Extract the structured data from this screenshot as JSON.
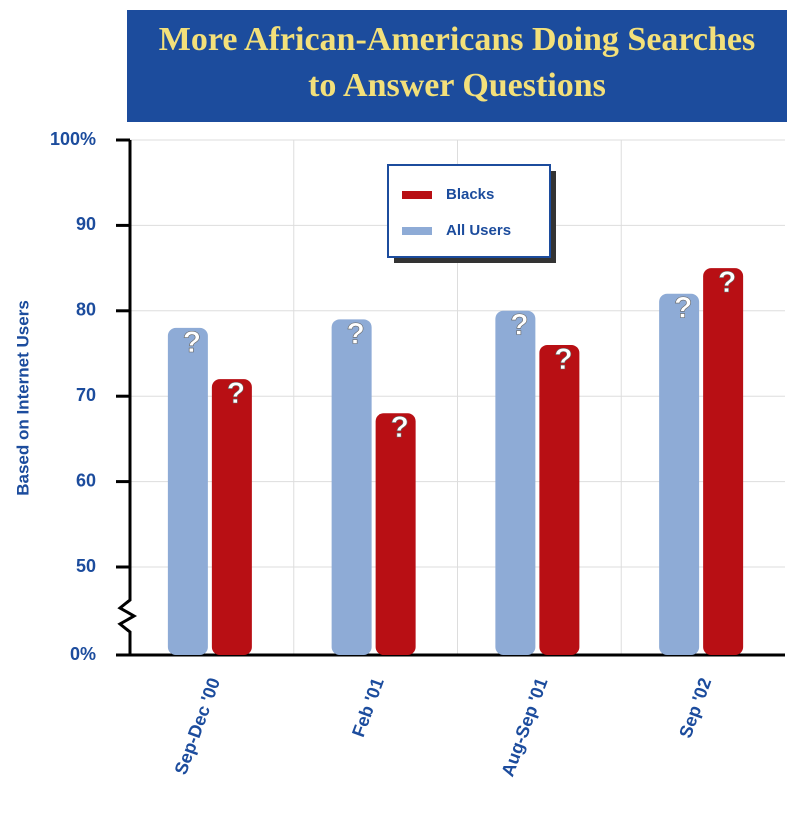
{
  "chart_data": {
    "type": "bar",
    "title": "More African-Americans Doing Searches to Answer Questions",
    "y_label": "Based on Internet Users",
    "categories": [
      "Sep-Dec '00",
      "Feb '01",
      "Aug-Sep '01",
      "Sep '02"
    ],
    "series": [
      {
        "name": "All Users",
        "color": "#8eabd6",
        "values": [
          78,
          79,
          80,
          82
        ]
      },
      {
        "name": "Blacks",
        "color": "#b80f14",
        "values": [
          72,
          68,
          76,
          85
        ]
      }
    ],
    "ylim": [
      0,
      100
    ],
    "y_break": [
      0,
      50
    ],
    "yticks": [
      {
        "value": 0,
        "label": "0%"
      },
      50,
      60,
      70,
      80,
      90,
      {
        "value": 100,
        "label": "100%"
      }
    ],
    "grid": true,
    "legend": "top"
  }
}
